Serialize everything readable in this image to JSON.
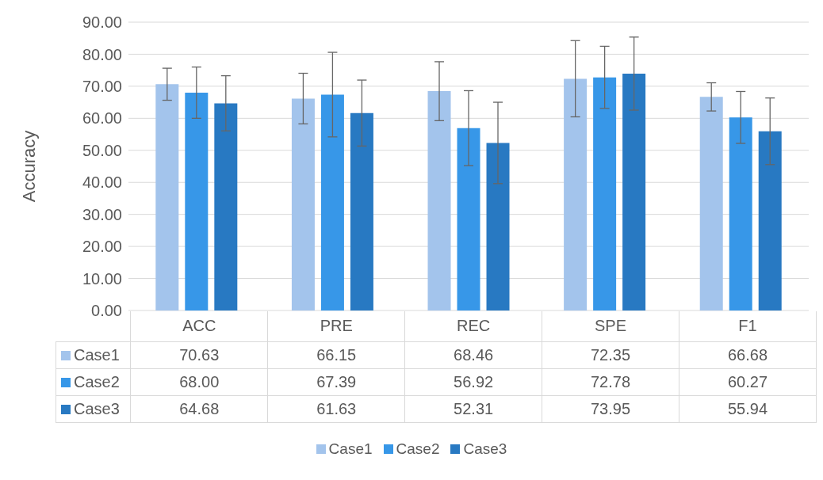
{
  "chart_data": {
    "type": "bar",
    "ylabel": "Accuracy",
    "categories": [
      "ACC",
      "PRE",
      "REC",
      "SPE",
      "F1"
    ],
    "series": [
      {
        "name": "Case1",
        "color": "#a3c4ec",
        "values": [
          70.63,
          66.15,
          68.46,
          72.35,
          66.68
        ],
        "errors": [
          5.0,
          7.9,
          9.2,
          11.9,
          4.4
        ],
        "value_labels": [
          "70.63",
          "66.15",
          "68.46",
          "72.35",
          "66.68"
        ]
      },
      {
        "name": "Case2",
        "color": "#3797e8",
        "values": [
          68.0,
          67.39,
          56.92,
          72.78,
          60.27
        ],
        "errors": [
          8.0,
          13.2,
          11.7,
          9.7,
          8.1
        ],
        "value_labels": [
          "68.00",
          "67.39",
          "56.92",
          "72.78",
          "60.27"
        ]
      },
      {
        "name": "Case3",
        "color": "#2879c2",
        "values": [
          64.68,
          61.63,
          52.31,
          73.95,
          55.94
        ],
        "errors": [
          8.6,
          10.3,
          12.7,
          11.4,
          10.4
        ],
        "value_labels": [
          "64.68",
          "61.63",
          "52.31",
          "73.95",
          "55.94"
        ]
      }
    ],
    "ylim": [
      0,
      90
    ],
    "yticks": [
      {
        "value": 0,
        "label": "0.00"
      },
      {
        "value": 10,
        "label": "10.00"
      },
      {
        "value": 20,
        "label": "20.00"
      },
      {
        "value": 30,
        "label": "30.00"
      },
      {
        "value": 40,
        "label": "40.00"
      },
      {
        "value": 50,
        "label": "50.00"
      },
      {
        "value": 60,
        "label": "60.00"
      },
      {
        "value": 70,
        "label": "70.00"
      },
      {
        "value": 80,
        "label": "80.00"
      },
      {
        "value": 90,
        "label": "90.00"
      }
    ],
    "grid": "y",
    "legend": "bottom"
  }
}
